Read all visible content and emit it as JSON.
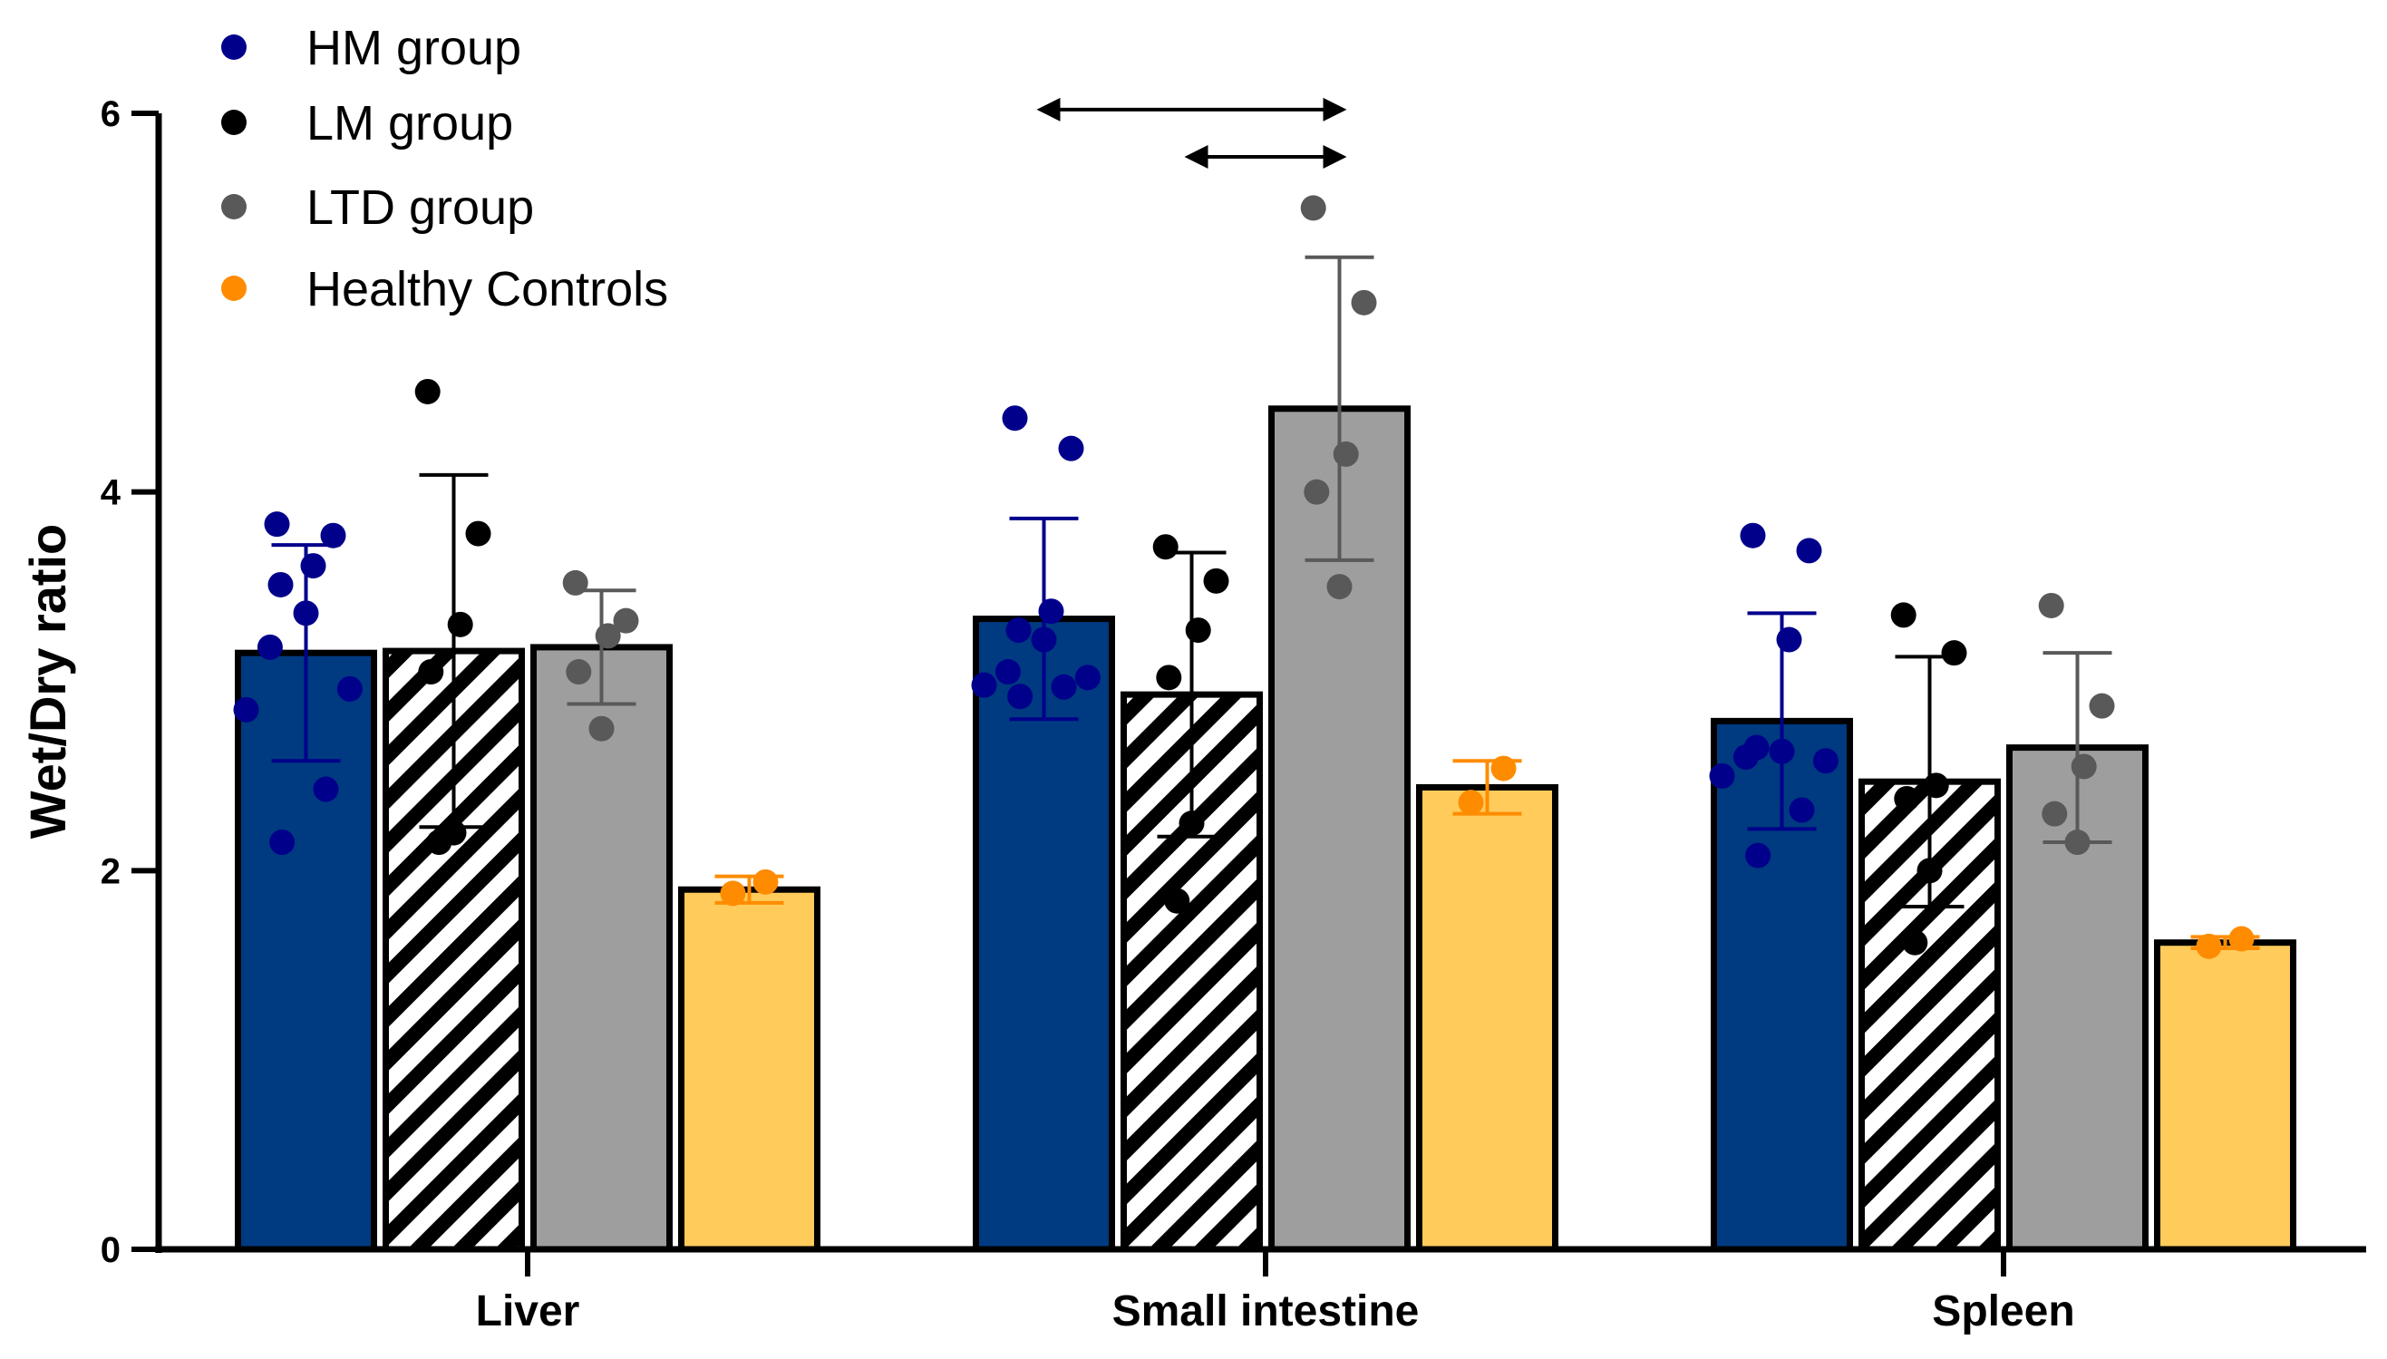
{
  "chart_data": {
    "type": "bar",
    "title": "",
    "xlabel": "",
    "ylabel": "Wet/Dry ratio",
    "ylim": [
      0,
      6
    ],
    "yticks": [
      "0",
      "2",
      "4",
      "6"
    ],
    "categories": [
      "Liver",
      "Small intestine",
      "Spleen"
    ],
    "legend": {
      "position": "top-left"
    },
    "series": [
      {
        "name": "HM group",
        "fill": "#003a80",
        "dot_color": "#00008b",
        "error_color": "#00008b",
        "pattern": "solid",
        "means": [
          3.15,
          3.33,
          2.79
        ],
        "sd": [
          0.57,
          0.53,
          0.57
        ],
        "points": [
          [
            3.83,
            3.77,
            3.61,
            3.51,
            3.36,
            3.18,
            2.96,
            2.85,
            2.43,
            2.15
          ],
          [
            4.39,
            4.23,
            3.37,
            3.27,
            3.22,
            3.05,
            3.02,
            2.98,
            2.97,
            2.92
          ],
          [
            3.77,
            3.69,
            3.22,
            2.65,
            2.63,
            2.6,
            2.58,
            2.5,
            2.32,
            2.08
          ]
        ]
      },
      {
        "name": "LM group",
        "fill": "#ffffff",
        "dot_color": "#000000",
        "error_color": "#000000",
        "pattern": "hatch",
        "means": [
          3.16,
          2.93,
          2.47
        ],
        "sd": [
          0.93,
          0.75,
          0.66
        ],
        "points": [
          [
            4.53,
            3.78,
            3.3,
            3.05,
            2.2,
            2.15
          ],
          [
            3.71,
            3.53,
            3.27,
            3.02,
            2.25,
            1.84
          ],
          [
            3.35,
            3.15,
            2.45,
            2.38,
            2.0,
            1.62
          ]
        ]
      },
      {
        "name": "LTD group",
        "fill": "#9e9e9e",
        "dot_color": "#595959",
        "error_color": "#595959",
        "pattern": "solid",
        "means": [
          3.18,
          4.44,
          2.65
        ],
        "sd": [
          0.3,
          0.8,
          0.5
        ],
        "points": [
          [
            3.52,
            3.32,
            3.24,
            3.05,
            2.75
          ],
          [
            5.5,
            5.0,
            4.2,
            4.0,
            3.5
          ],
          [
            3.4,
            2.87,
            2.55,
            2.3,
            2.15
          ]
        ]
      },
      {
        "name": "Healthy Controls",
        "fill": "#ffcc5c",
        "dot_color": "#ff8c00",
        "error_color": "#ff8c00",
        "pattern": "solid",
        "means": [
          1.9,
          2.44,
          1.62
        ],
        "sd": [
          0.07,
          0.14,
          0.03
        ],
        "points": [
          [
            1.94,
            1.88
          ],
          [
            2.54,
            2.36
          ],
          [
            1.64,
            1.6
          ]
        ]
      }
    ],
    "annotations": [
      {
        "type": "double-arrow",
        "category": "Small intestine",
        "from_series": "HM group",
        "to_series": "LTD group",
        "level": 6.02
      },
      {
        "type": "double-arrow",
        "category": "Small intestine",
        "from_series": "LM group",
        "to_series": "LTD group",
        "level": 5.77
      }
    ]
  }
}
